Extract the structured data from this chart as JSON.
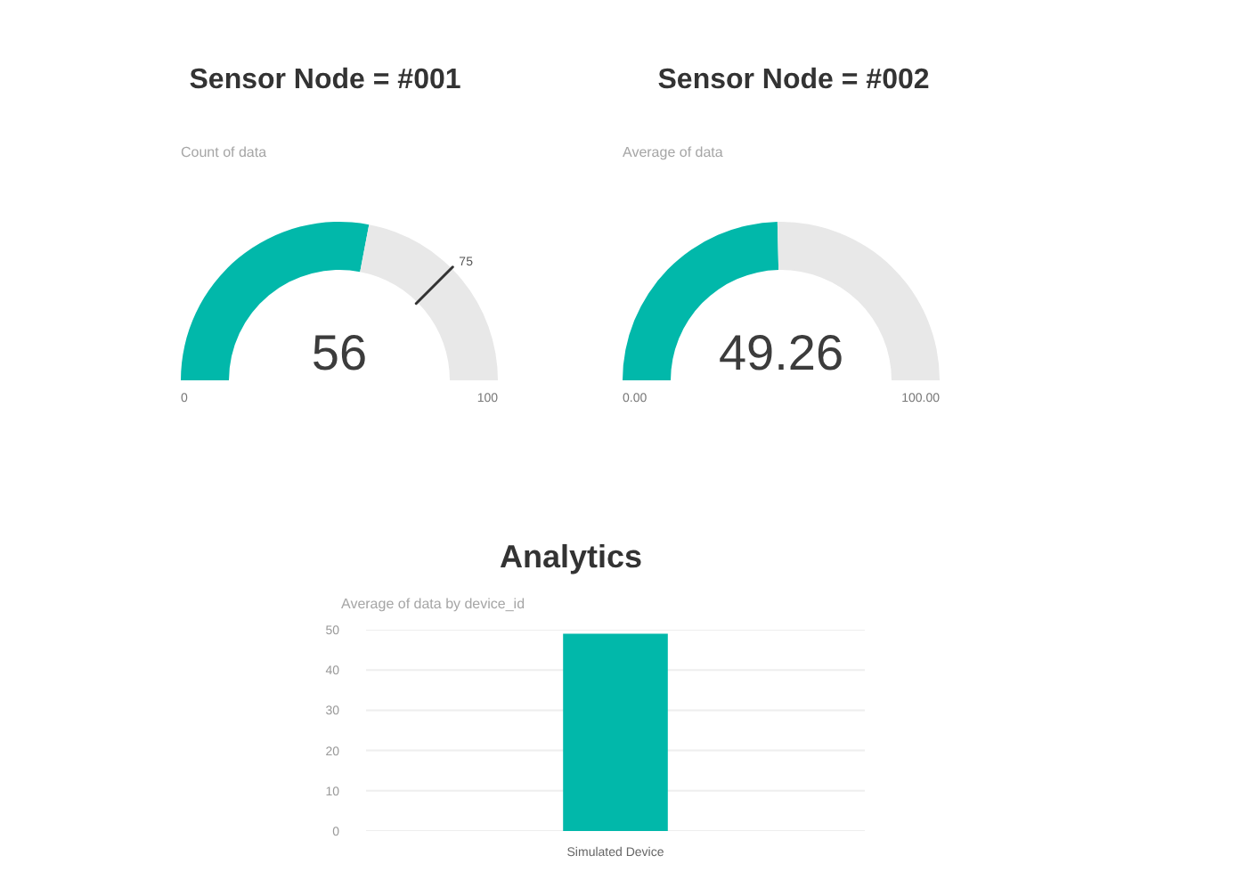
{
  "chart_data": [
    {
      "type": "donut",
      "title": "Sensor Node = #001",
      "subtitle": "Count of data",
      "categories": [
        null,
        null
      ],
      "values": [
        56,
        44
      ],
      "colors": [
        "#01b8aa",
        "#e8e8e8"
      ],
      "value_labels": [
        "56",
        null
      ],
      "annotations": [
        "0",
        "100",
        "75"
      ]
    },
    {
      "type": "donut",
      "title": "Sensor Node = #002",
      "subtitle": "Average of data",
      "categories": [
        null,
        null
      ],
      "values": [
        49.26,
        50.74
      ],
      "colors": [
        "#01b8aa",
        "#e8e8e8"
      ],
      "value_labels": [
        "49.26",
        null
      ],
      "annotations": [
        "0.00",
        "100.00"
      ]
    },
    {
      "type": "bar",
      "title": "Analytics",
      "subtitle": "Average of data by device_id",
      "categories": [
        "Simulated Device"
      ],
      "values": [
        49
      ],
      "color": "#01b8aa",
      "ylim": [
        0,
        50
      ],
      "yticks": [
        0,
        10,
        20,
        30,
        40,
        50
      ],
      "grid": "y"
    }
  ]
}
